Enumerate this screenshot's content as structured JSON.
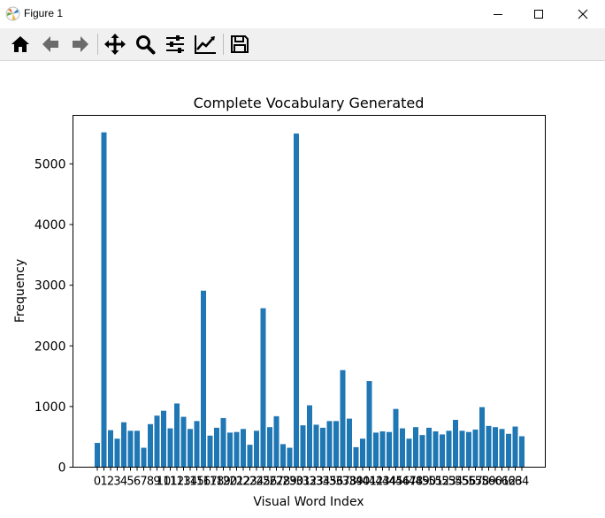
{
  "window": {
    "title": "Figure 1"
  },
  "window_controls": [
    "minimize-icon",
    "maximize-icon",
    "close-icon"
  ],
  "toolbar": {
    "buttons": [
      "home-icon",
      "back-arrow-icon",
      "forward-arrow-icon",
      "pan-icon",
      "zoom-icon",
      "configure-subplots-icon",
      "edit-axis-icon",
      "save-icon"
    ]
  },
  "colors": {
    "bar": "#1f77b4",
    "toolbar_bg": "#f0f0f0"
  },
  "chart_data": {
    "type": "bar",
    "title": "Complete Vocabulary Generated",
    "xlabel": "Visual Word Index",
    "ylabel": "Frequency",
    "ylim": [
      0,
      5800
    ],
    "yticks": [
      0,
      1000,
      2000,
      3000,
      4000,
      5000
    ],
    "categories": [
      "0",
      "1",
      "2",
      "3",
      "4",
      "5",
      "6",
      "7",
      "8",
      "9",
      "10",
      "11",
      "12",
      "13",
      "14",
      "15",
      "16",
      "17",
      "18",
      "19",
      "20",
      "21",
      "22",
      "23",
      "24",
      "25",
      "26",
      "27",
      "28",
      "29",
      "30",
      "31",
      "32",
      "33",
      "34",
      "35",
      "36",
      "37",
      "38",
      "39",
      "40",
      "41",
      "42",
      "43",
      "44",
      "45",
      "46",
      "47",
      "48",
      "49",
      "50",
      "51",
      "52",
      "53",
      "54",
      "55",
      "56",
      "57",
      "58",
      "59",
      "60",
      "61",
      "62",
      "63",
      "64"
    ],
    "values": [
      400,
      5520,
      610,
      470,
      740,
      600,
      600,
      320,
      710,
      850,
      930,
      640,
      1050,
      830,
      630,
      760,
      2910,
      520,
      650,
      810,
      570,
      580,
      630,
      370,
      600,
      2620,
      660,
      840,
      380,
      320,
      5500,
      690,
      1020,
      700,
      650,
      760,
      760,
      1600,
      800,
      330,
      470,
      1420,
      570,
      590,
      580,
      960,
      640,
      470,
      660,
      530,
      650,
      590,
      540,
      600,
      780,
      600,
      580,
      620,
      990,
      680,
      660,
      630,
      550,
      670,
      510
    ]
  }
}
